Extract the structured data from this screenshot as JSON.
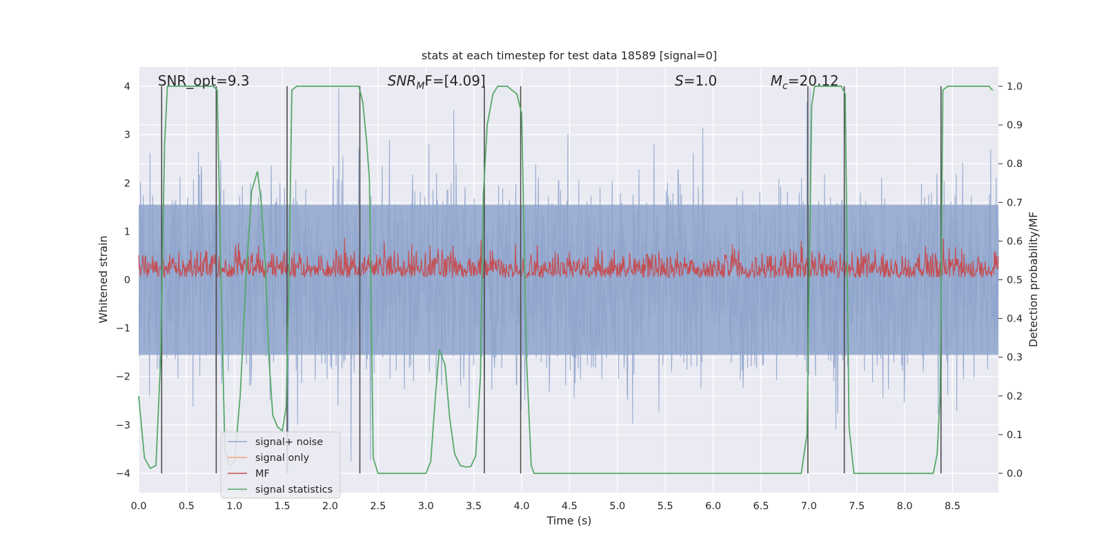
{
  "chart_data": {
    "type": "line",
    "title": "stats at each timestep for test data 18589 [signal=0]",
    "xlabel": "Time (s)",
    "ylabel_left": "Whitened strain",
    "ylabel_right": "Detection probability/MF",
    "xlim": [
      0,
      8.98
    ],
    "ylim_left": [
      -4.4,
      4.4
    ],
    "ylim_right": [
      -0.05,
      1.05
    ],
    "xticks": [
      0.0,
      0.5,
      1.0,
      1.5,
      2.0,
      2.5,
      3.0,
      3.5,
      4.0,
      4.5,
      5.0,
      5.5,
      6.0,
      6.5,
      7.0,
      7.5,
      8.0,
      8.5
    ],
    "xtick_labels": [
      "0.0",
      "0.5",
      "1.0",
      "1.5",
      "2.0",
      "2.5",
      "3.0",
      "3.5",
      "4.0",
      "4.5",
      "5.0",
      "5.5",
      "6.0",
      "6.5",
      "7.0",
      "7.5",
      "8.0",
      "8.5"
    ],
    "yticks_left": [
      -4,
      -3,
      -2,
      -1,
      0,
      1,
      2,
      3,
      4
    ],
    "ytick_labels_left": [
      "−4",
      "−3",
      "−2",
      "−1",
      "0",
      "1",
      "2",
      "3",
      "4"
    ],
    "yticks_right": [
      0.0,
      0.1,
      0.2,
      0.3,
      0.4,
      0.5,
      0.6,
      0.7,
      0.8,
      0.9,
      1.0
    ],
    "ytick_labels_right": [
      "0.0",
      "0.1",
      "0.2",
      "0.3",
      "0.4",
      "0.5",
      "0.6",
      "0.7",
      "0.8",
      "0.9",
      "1.0"
    ],
    "grid": true,
    "legend_position": "lower-left",
    "series": [
      {
        "name": "signal+ noise",
        "axis": "left",
        "color": "#8fa5cc",
        "description_values": "noise band approximately -3.8 to 3.8"
      },
      {
        "name": "signal only",
        "axis": "left",
        "color": "#f0a878"
      },
      {
        "name": "MF",
        "axis": "right",
        "color": "#c44e52"
      },
      {
        "name": "signal statistics",
        "axis": "right",
        "color": "#55a868",
        "x": [
          0.0,
          0.06,
          0.12,
          0.18,
          0.23,
          0.27,
          0.3,
          0.34,
          0.4,
          0.5,
          0.6,
          0.7,
          0.78,
          0.82,
          0.86,
          0.9,
          0.95,
          1.0,
          1.06,
          1.12,
          1.18,
          1.24,
          1.28,
          1.32,
          1.36,
          1.4,
          1.45,
          1.5,
          1.54,
          1.57,
          1.6,
          1.65,
          1.75,
          2.0,
          2.25,
          2.3,
          2.34,
          2.38,
          2.41,
          2.45,
          2.5,
          2.6,
          2.8,
          3.0,
          3.05,
          3.1,
          3.14,
          3.2,
          3.25,
          3.3,
          3.36,
          3.42,
          3.47,
          3.52,
          3.57,
          3.6,
          3.64,
          3.7,
          3.75,
          3.8,
          3.85,
          3.9,
          3.95,
          4.0,
          4.05,
          4.1,
          4.13,
          4.2,
          4.5,
          5.0,
          5.5,
          6.0,
          6.5,
          6.92,
          6.98,
          7.03,
          7.06,
          7.1,
          7.2,
          7.34,
          7.38,
          7.42,
          7.47,
          7.52,
          7.6,
          8.0,
          8.3,
          8.34,
          8.37,
          8.4,
          8.45,
          8.6,
          8.8,
          8.88,
          8.92
        ],
        "values": [
          0.2,
          0.04,
          0.013,
          0.02,
          0.3,
          0.85,
          1.0,
          1.0,
          1.0,
          1.0,
          1.0,
          1.0,
          1.0,
          0.99,
          0.5,
          0.06,
          0.02,
          0.03,
          0.2,
          0.5,
          0.73,
          0.78,
          0.7,
          0.55,
          0.3,
          0.15,
          0.12,
          0.11,
          0.17,
          0.5,
          0.99,
          1.0,
          1.0,
          1.0,
          1.0,
          1.0,
          0.96,
          0.86,
          0.76,
          0.04,
          0.0,
          0.0,
          0.0,
          0.0,
          0.03,
          0.2,
          0.32,
          0.28,
          0.14,
          0.05,
          0.02,
          0.016,
          0.018,
          0.045,
          0.25,
          0.72,
          0.9,
          0.98,
          1.0,
          1.0,
          1.0,
          0.99,
          0.98,
          0.93,
          0.3,
          0.02,
          0.0,
          0.0,
          0.0,
          0.0,
          0.0,
          0.0,
          0.0,
          0.0,
          0.1,
          0.95,
          1.0,
          1.0,
          1.0,
          1.0,
          0.98,
          0.12,
          0.0,
          0.0,
          0.0,
          0.0,
          0.0,
          0.05,
          0.2,
          0.99,
          1.0,
          1.0,
          1.0,
          1.0,
          0.99
        ]
      }
    ],
    "vertical_lines": [
      0.24,
      0.81,
      1.55,
      2.31,
      3.61,
      3.99,
      6.99,
      7.37,
      8.38
    ],
    "annotations": [
      {
        "text": "SNR_opt=9.3",
        "x": 0.2,
        "y": 4.1
      },
      {
        "text": "SNR",
        "italic": true,
        "sub": "M",
        "suffix": "F=[4.09]",
        "x": 2.6,
        "y": 4.1
      },
      {
        "text": "S",
        "italic": true,
        "suffix": "=1.0",
        "x": 5.6,
        "y": 4.1
      },
      {
        "text": "M",
        "italic": true,
        "sub": "c",
        "suffix": "=20.12",
        "x": 6.6,
        "y": 4.1
      }
    ]
  },
  "colors": {
    "axes_bg": "#eaeaf2",
    "grid": "#ffffff",
    "text": "#262626",
    "vline": "#4a4a4a"
  }
}
